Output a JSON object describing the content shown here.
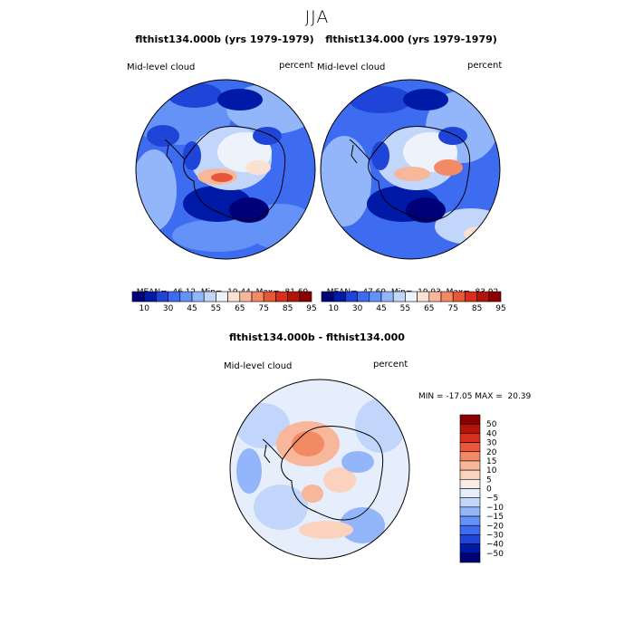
{
  "figure": {
    "title": "JJA"
  },
  "panels": [
    {
      "title": "flthist134.000b (yrs 1979-1979)",
      "field_label": "Mid-level cloud",
      "units": "percent",
      "stats": {
        "mean_label": "MEAN=",
        "mean": "46.12",
        "min_label": "Min=",
        "min": "19.44",
        "max_label": "Max=",
        "max": "81.69"
      }
    },
    {
      "title": "flthist134.000 (yrs 1979-1979)",
      "field_label": "Mid-level cloud",
      "units": "percent",
      "stats": {
        "mean_label": "MEAN=",
        "mean": "47.69",
        "min_label": "Min=",
        "min": "19.93",
        "max_label": "Max=",
        "max": "83.92"
      }
    }
  ],
  "diff_panel": {
    "title": "flthist134.000b - flthist134.000",
    "field_label": "Mid-level cloud",
    "units": "percent",
    "minmax": "MIN = -17.05 MAX =  20.39"
  },
  "colorbar_top": {
    "tick_labels": [
      "10",
      "30",
      "45",
      "55",
      "65",
      "75",
      "85",
      "95"
    ],
    "colors": [
      "#000078",
      "#001aa8",
      "#1e45d8",
      "#3d6cf0",
      "#6492f7",
      "#93b6fa",
      "#c2d6fb",
      "#eef2fb",
      "#fbe1d2",
      "#f8b79a",
      "#f28a66",
      "#e9573a",
      "#d92e1a",
      "#b31408",
      "#8a0000"
    ]
  },
  "colorbar_diff": {
    "levels": [
      "50",
      "40",
      "30",
      "20",
      "15",
      "10",
      "5",
      "0",
      "−5",
      "−10",
      "−15",
      "−20",
      "−30",
      "−40",
      "−50"
    ],
    "colors": [
      "#8a0000",
      "#b31408",
      "#d92e1a",
      "#e9573a",
      "#f28a66",
      "#f8b79a",
      "#fbd2bd",
      "#f7ede6",
      "#e6eefb",
      "#c2d6fb",
      "#93b6fa",
      "#6492f7",
      "#3d6cf0",
      "#1e45d8",
      "#001aa8",
      "#000078"
    ]
  },
  "chart_data": [
    {
      "type": "heatmap",
      "projection": "south-polar-stereographic",
      "title": "flthist134.000b (yrs 1979-1979)",
      "variable": "Mid-level cloud",
      "units": "percent",
      "mean": 46.12,
      "min": 19.44,
      "max": 81.69,
      "levels": [
        10,
        20,
        30,
        40,
        45,
        50,
        55,
        60,
        65,
        70,
        75,
        80,
        85,
        90,
        95
      ]
    },
    {
      "type": "heatmap",
      "projection": "south-polar-stereographic",
      "title": "flthist134.000 (yrs 1979-1979)",
      "variable": "Mid-level cloud",
      "units": "percent",
      "mean": 47.69,
      "min": 19.93,
      "max": 83.92,
      "levels": [
        10,
        20,
        30,
        40,
        45,
        50,
        55,
        60,
        65,
        70,
        75,
        80,
        85,
        90,
        95
      ]
    },
    {
      "type": "heatmap",
      "projection": "south-polar-stereographic",
      "title": "flthist134.000b - flthist134.000",
      "variable": "Mid-level cloud",
      "units": "percent",
      "min": -17.05,
      "max": 20.39,
      "levels": [
        -50,
        -40,
        -30,
        -20,
        -15,
        -10,
        -5,
        0,
        5,
        10,
        15,
        20,
        30,
        40,
        50
      ]
    }
  ]
}
